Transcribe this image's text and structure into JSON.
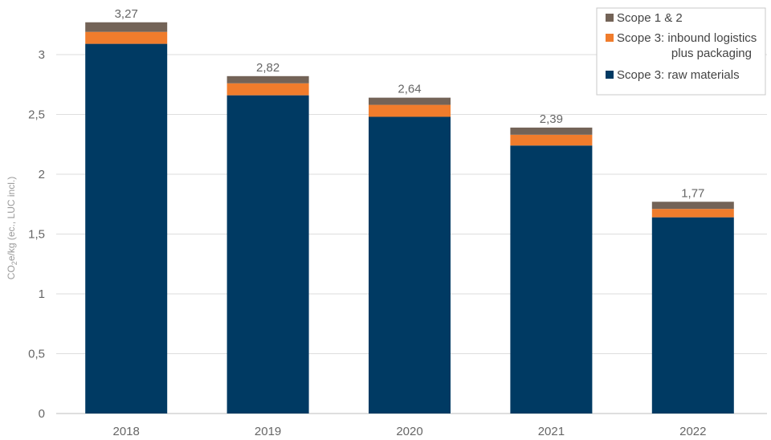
{
  "chart_data": {
    "type": "bar",
    "stacked": true,
    "categories": [
      "2018",
      "2019",
      "2020",
      "2021",
      "2022"
    ],
    "series": [
      {
        "name": "Scope 3: raw materials",
        "values": [
          3.09,
          2.66,
          2.48,
          2.24,
          1.64
        ],
        "color": "#003a63"
      },
      {
        "name": "Scope 3: inbound logistics plus packaging",
        "values": [
          0.1,
          0.1,
          0.1,
          0.09,
          0.07
        ],
        "color": "#f07c2c"
      },
      {
        "name": "Scope 1 & 2",
        "values": [
          0.08,
          0.06,
          0.06,
          0.06,
          0.06
        ],
        "color": "#736357"
      }
    ],
    "totals": [
      "3,27",
      "2,82",
      "2,64",
      "2,39",
      "1,77"
    ],
    "yticks": [
      "0",
      "0,5",
      "1",
      "1,5",
      "2",
      "2,5",
      "3"
    ],
    "ylabel": {
      "prefix": "CO",
      "sub": "2",
      "suffix": "e/kg (ec., LUC incl.)"
    },
    "ylim": [
      0,
      3.3
    ],
    "grid": true,
    "legend": {
      "position": "top-right",
      "items": [
        {
          "lines": [
            "Scope 1 & 2"
          ],
          "color": "#736357"
        },
        {
          "lines": [
            "Scope 3: inbound logistics",
            "plus packaging"
          ],
          "color": "#f07c2c"
        },
        {
          "lines": [
            "Scope 3: raw materials"
          ],
          "color": "#003a63"
        }
      ]
    }
  }
}
